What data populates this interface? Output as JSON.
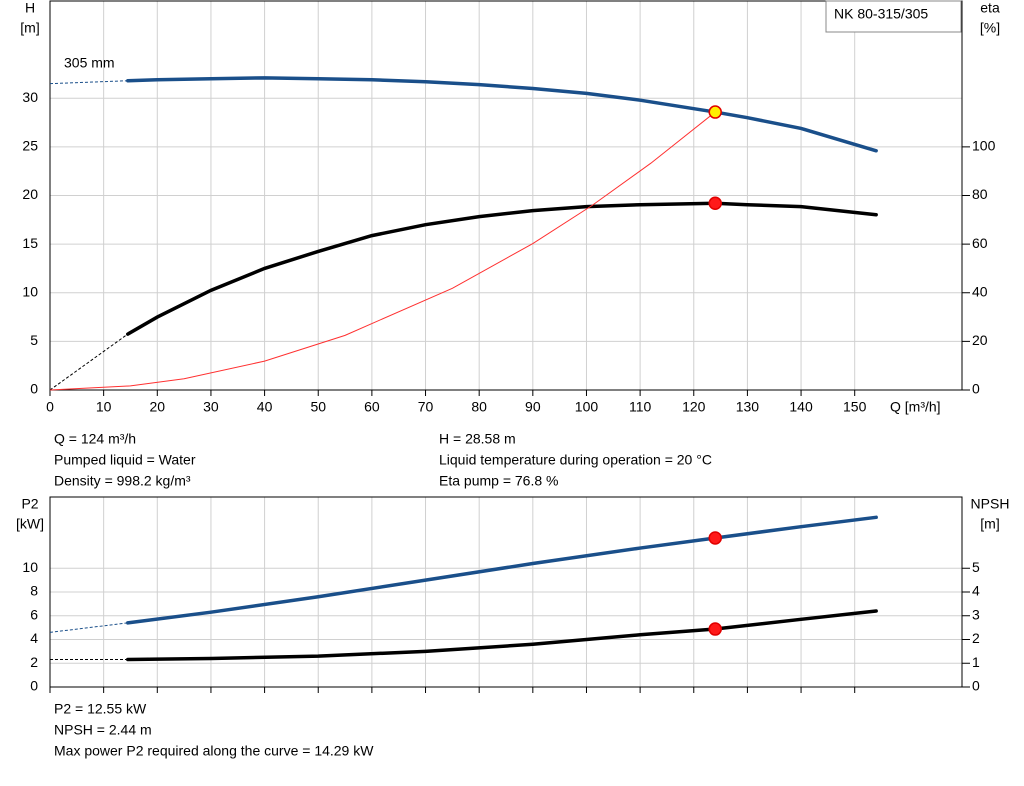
{
  "chart_data": [
    {
      "type": "line",
      "legend_box": "NK 80-315/305",
      "curve_label": "305 mm",
      "ylabel": "H",
      "yunit": "[m]",
      "y2label": "eta",
      "y2unit": "[%]",
      "xlabel": "Q [m³/h]",
      "xlim": [
        0,
        170
      ],
      "xticks": [
        0,
        10,
        20,
        30,
        40,
        50,
        60,
        70,
        80,
        90,
        100,
        110,
        120,
        130,
        140,
        150
      ],
      "ylim": [
        0,
        40
      ],
      "yticks": [
        0,
        5,
        10,
        15,
        20,
        25,
        30
      ],
      "y2lim": [
        0,
        160
      ],
      "y2ticks": [
        0,
        20,
        40,
        60,
        80,
        100
      ],
      "grid": true,
      "series": [
        {
          "color": "#1a4f8a",
          "width": 3.5,
          "extrapolated": true,
          "x": [
            0,
            14.5,
            20,
            30,
            40,
            50,
            60,
            70,
            80,
            90,
            100,
            110,
            124,
            130,
            140,
            154
          ],
          "values": [
            31.5,
            31.8,
            31.9,
            32.0,
            32.1,
            32.0,
            31.9,
            31.7,
            31.4,
            31.0,
            30.5,
            29.8,
            28.58,
            28.0,
            26.9,
            24.6
          ]
        },
        {
          "color": "#000000",
          "width": 3.5,
          "extrapolated": true,
          "axis": "y2",
          "x": [
            0,
            14.5,
            20,
            30,
            40,
            50,
            60,
            70,
            80,
            90,
            100,
            110,
            124,
            130,
            140,
            154
          ],
          "values": [
            0,
            23,
            30,
            41,
            50,
            57,
            63.5,
            68,
            71.3,
            73.8,
            75.4,
            76.2,
            76.8,
            76.2,
            75.4,
            72.1
          ]
        },
        {
          "color": "#ff3030",
          "width": 1,
          "extrapolated": false,
          "x": [
            0,
            15,
            25,
            40,
            55,
            75,
            90,
            101,
            112,
            124
          ],
          "values": [
            0,
            0.42,
            1.16,
            2.97,
            5.62,
            10.46,
            15.06,
            18.96,
            23.32,
            28.58
          ]
        }
      ],
      "points": [
        {
          "x": 124,
          "y": 28.58,
          "color": "#ffee00",
          "edge": "#e00000"
        },
        {
          "x": 124,
          "y": 76.8,
          "axis": "y2",
          "color": "#ff1a1a",
          "edge": "#e00000"
        }
      ],
      "info": {
        "left": [
          "Q = 124 m³/h",
          "Pumped liquid = Water",
          "Density = 998.2 kg/m³"
        ],
        "right": [
          "H = 28.58 m",
          "Liquid temperature during operation = 20 °C",
          "Eta pump = 76.8 %"
        ]
      }
    },
    {
      "type": "line",
      "ylabel": "P2",
      "yunit": "[kW]",
      "y2label": "NPSH",
      "y2unit": "[m]",
      "xlim": [
        0,
        170
      ],
      "xticks": [
        0,
        10,
        20,
        30,
        40,
        50,
        60,
        70,
        80,
        90,
        100,
        110,
        120,
        130,
        140,
        150
      ],
      "xtick_labels": false,
      "ylim": [
        0,
        16
      ],
      "yticks": [
        0,
        2,
        4,
        6,
        8,
        10
      ],
      "y2lim": [
        0,
        8
      ],
      "y2ticks": [
        0,
        1,
        2,
        3,
        4,
        5
      ],
      "grid": true,
      "series": [
        {
          "color": "#1a4f8a",
          "width": 3.5,
          "extrapolated": true,
          "x": [
            0,
            14.5,
            30,
            50,
            70,
            90,
            110,
            124,
            140,
            154
          ],
          "values": [
            4.6,
            5.4,
            6.3,
            7.6,
            9.0,
            10.4,
            11.7,
            12.55,
            13.5,
            14.29
          ]
        },
        {
          "color": "#000000",
          "width": 3.5,
          "extrapolated": true,
          "axis": "y2",
          "x": [
            0,
            14.5,
            30,
            50,
            70,
            90,
            110,
            124,
            140,
            154
          ],
          "values": [
            1.16,
            1.16,
            1.2,
            1.3,
            1.5,
            1.8,
            2.2,
            2.44,
            2.85,
            3.2
          ]
        }
      ],
      "points": [
        {
          "x": 124,
          "y": 12.55,
          "color": "#ff1a1a",
          "edge": "#e00000"
        },
        {
          "x": 124,
          "y": 2.44,
          "axis": "y2",
          "color": "#ff1a1a",
          "edge": "#e00000"
        }
      ],
      "info": {
        "left": [
          "P2 = 12.55 kW",
          "NPSH = 2.44 m",
          "Max power P2 required along the curve = 14.29 kW"
        ]
      }
    }
  ]
}
